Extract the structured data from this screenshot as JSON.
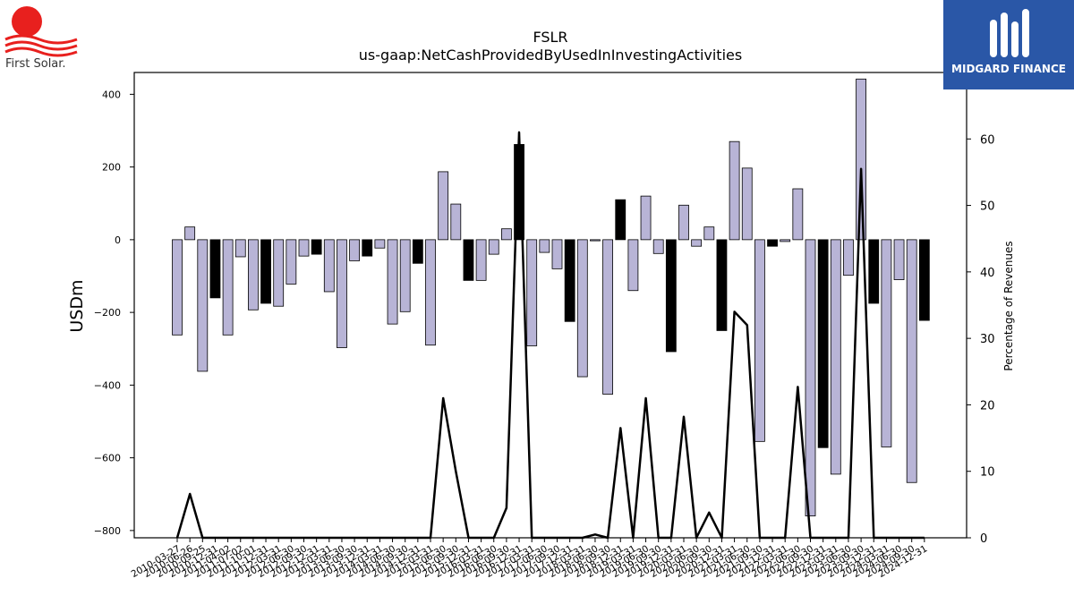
{
  "logos": {
    "left_text": "First Solar.",
    "right_text": "MIDGARD FINANCE"
  },
  "chart_data": {
    "type": "bar",
    "title": "FSLR",
    "subtitle": "us-gaap:NetCashProvidedByUsedInInvestingActivities",
    "ylabel": "USDm",
    "y2label": "Percentage of Revenues",
    "ylim": [
      -820,
      460
    ],
    "y2lim": [
      0,
      70
    ],
    "yticks": [
      -800,
      -600,
      -400,
      -200,
      0,
      200,
      400
    ],
    "y2ticks": [
      0,
      10,
      20,
      30,
      40,
      50,
      60
    ],
    "colors": {
      "quarterly": "#b8b4d6",
      "annual": "#000000",
      "line": "#000000"
    },
    "categories": [
      "2010-03-27",
      "2010-06-26",
      "2010-09-25",
      "2010-12-31",
      "2011-04-02",
      "2011-07-02",
      "2011-10-01",
      "2011-12-31",
      "2012-03-31",
      "2012-06-30",
      "2012-09-30",
      "2012-12-31",
      "2013-03-31",
      "2013-06-30",
      "2013-09-30",
      "2013-12-31",
      "2014-03-31",
      "2014-06-30",
      "2014-09-30",
      "2014-12-31",
      "2015-03-31",
      "2015-06-30",
      "2015-09-30",
      "2015-12-31",
      "2016-03-31",
      "2016-06-30",
      "2016-09-30",
      "2016-12-31",
      "2017-03-31",
      "2017-06-30",
      "2017-09-30",
      "2017-12-31",
      "2018-03-31",
      "2018-06-30",
      "2018-09-30",
      "2018-12-31",
      "2019-03-31",
      "2019-06-30",
      "2019-09-30",
      "2019-12-31",
      "2020-03-31",
      "2020-06-30",
      "2020-09-30",
      "2020-12-31",
      "2021-03-31",
      "2021-06-30",
      "2021-09-30",
      "2021-12-31",
      "2022-03-31",
      "2022-06-30",
      "2022-09-30",
      "2022-12-31",
      "2023-03-31",
      "2023-06-30",
      "2023-09-30",
      "2023-12-31",
      "2024-03-31",
      "2024-06-30",
      "2024-09-30",
      "2024-12-31"
    ],
    "values": [
      -262,
      35,
      -362,
      -160,
      -262,
      -47,
      -193,
      -175,
      -183,
      -122,
      -45,
      -40,
      -143,
      -297,
      -58,
      -45,
      -23,
      -232,
      -198,
      -65,
      -290,
      187,
      98,
      -112,
      -112,
      -40,
      30,
      262,
      -292,
      -35,
      -80,
      -225,
      -377,
      -3,
      -425,
      110,
      -140,
      120,
      -38,
      -308,
      95,
      -18,
      35,
      -250,
      270,
      197,
      -555,
      -18,
      -5,
      140,
      -760,
      -572,
      -645,
      -98,
      442,
      -175,
      -570,
      -110,
      -668,
      -222
    ],
    "annual": [
      false,
      false,
      false,
      true,
      false,
      false,
      false,
      true,
      false,
      false,
      false,
      true,
      false,
      false,
      false,
      true,
      false,
      false,
      false,
      true,
      false,
      false,
      false,
      true,
      false,
      false,
      false,
      true,
      false,
      false,
      false,
      true,
      false,
      false,
      false,
      true,
      false,
      false,
      false,
      true,
      false,
      false,
      false,
      true,
      false,
      false,
      false,
      true,
      false,
      false,
      false,
      true,
      false,
      false,
      false,
      true,
      false,
      false,
      false,
      true
    ],
    "pct_of_revenues": [
      0,
      6.6,
      0,
      0,
      0,
      0,
      0,
      0,
      0,
      0,
      0,
      0,
      0,
      0,
      0,
      0,
      0,
      0,
      0,
      0,
      0,
      21,
      10,
      0,
      0,
      0,
      4.5,
      61,
      0,
      0,
      0,
      0,
      0,
      0.5,
      0,
      16.5,
      0,
      21,
      0,
      0,
      18.2,
      0,
      3.8,
      0,
      34,
      32,
      0,
      0,
      0,
      22.7,
      0,
      0,
      0,
      0,
      55.5,
      0,
      0,
      0,
      0,
      0
    ]
  }
}
